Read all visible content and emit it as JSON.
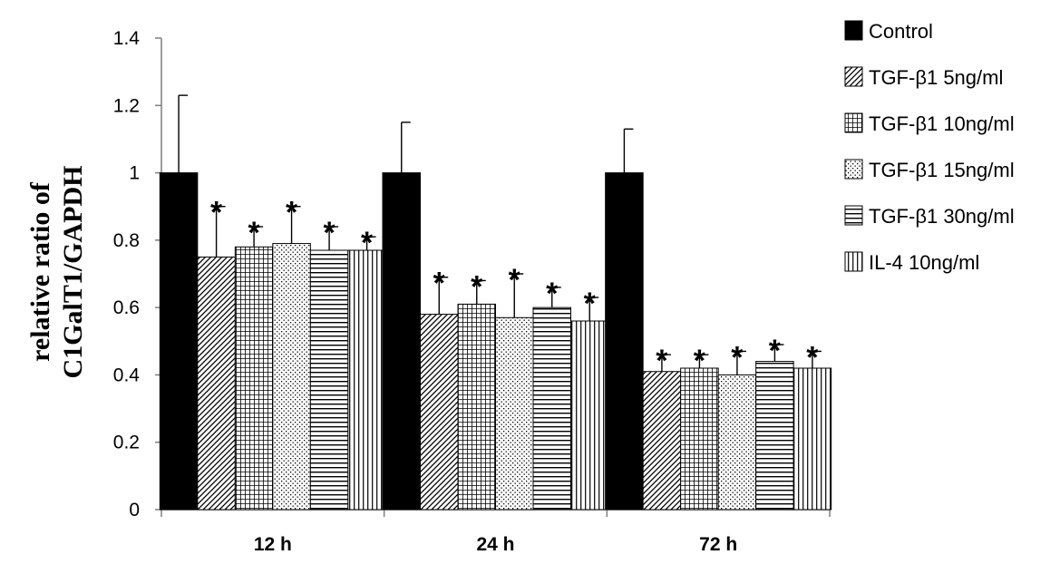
{
  "chart_data": {
    "type": "bar",
    "categories": [
      "12 h",
      "24 h",
      "72 h"
    ],
    "series": [
      {
        "name": "Control",
        "pattern": "solid",
        "values": [
          1.0,
          1.0,
          1.0
        ],
        "errors": [
          0.23,
          0.15,
          0.13
        ],
        "significant": [
          false,
          false,
          false
        ]
      },
      {
        "name": "TGF-β1 5ng/ml",
        "pattern": "diagonal",
        "values": [
          0.75,
          0.58,
          0.41
        ],
        "errors": [
          0.15,
          0.11,
          0.05
        ],
        "significant": [
          true,
          true,
          true
        ]
      },
      {
        "name": "TGF-β1 10ng/ml",
        "pattern": "grid",
        "values": [
          0.78,
          0.61,
          0.42
        ],
        "errors": [
          0.06,
          0.07,
          0.04
        ],
        "significant": [
          true,
          true,
          true
        ]
      },
      {
        "name": "TGF-β1 15ng/ml",
        "pattern": "dots",
        "values": [
          0.79,
          0.57,
          0.4
        ],
        "errors": [
          0.11,
          0.13,
          0.07
        ],
        "significant": [
          true,
          true,
          true
        ]
      },
      {
        "name": "TGF-β1 30ng/ml",
        "pattern": "horizontal",
        "values": [
          0.77,
          0.6,
          0.44
        ],
        "errors": [
          0.07,
          0.06,
          0.05
        ],
        "significant": [
          true,
          true,
          true
        ]
      },
      {
        "name": "IL-4 10ng/ml",
        "pattern": "vertical",
        "values": [
          0.77,
          0.56,
          0.42
        ],
        "errors": [
          0.04,
          0.07,
          0.05
        ],
        "significant": [
          true,
          true,
          true
        ]
      }
    ],
    "significance_marker": "*",
    "ylabel_line1": "relative ratio of",
    "ylabel_line2": "C1GalT1/GAPDH",
    "ylim": [
      0,
      1.4
    ],
    "yticks": [
      "0",
      "0.2",
      "0.4",
      "0.6",
      "0.8",
      "1",
      "1.2",
      "1.4"
    ],
    "grid": false,
    "legend_position": "right",
    "colors": {
      "bar_fill": "#000000",
      "bar_outline": "#000000",
      "background": "#ffffff"
    }
  }
}
